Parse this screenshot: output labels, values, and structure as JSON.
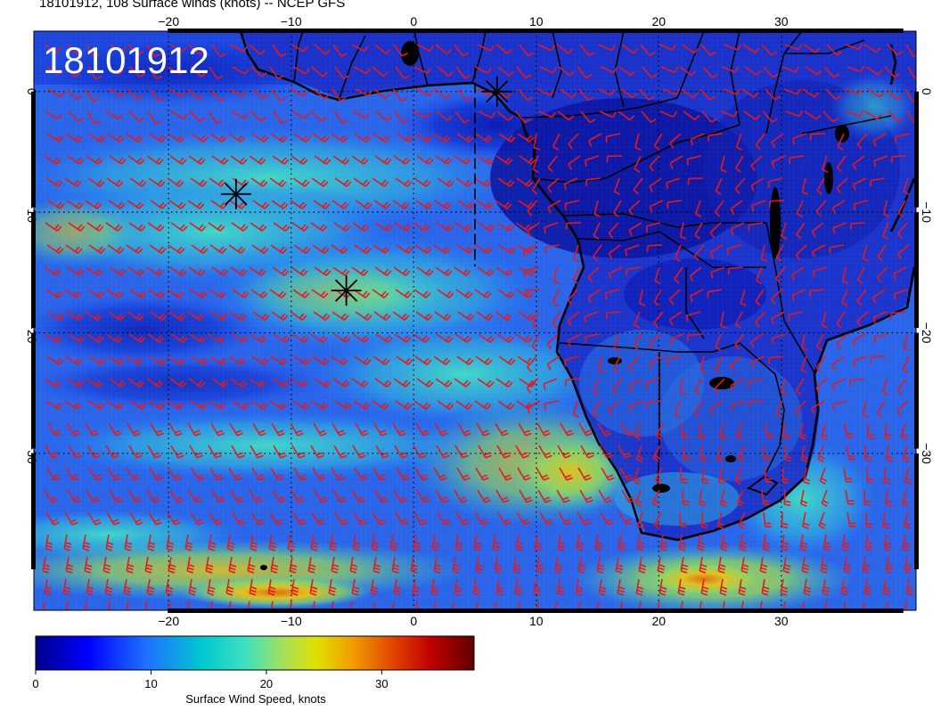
{
  "title": "18101912, 108 Surface winds (knots) -- NCEP GFS",
  "stamp": "18101912",
  "map": {
    "lon_range": [
      -31,
      41
    ],
    "lat_range": [
      5,
      -43
    ],
    "lon_ticks": [
      {
        "value": -20,
        "label": "−20"
      },
      {
        "value": -10,
        "label": "−10"
      },
      {
        "value": 0,
        "label": "0"
      },
      {
        "value": 10,
        "label": "10"
      },
      {
        "value": 20,
        "label": "20"
      },
      {
        "value": 30,
        "label": "30"
      }
    ],
    "lat_ticks": [
      {
        "value": 0,
        "label": "0"
      },
      {
        "value": -10,
        "label": "−10"
      },
      {
        "value": -20,
        "label": "−20"
      },
      {
        "value": -30,
        "label": "−30"
      }
    ],
    "grid": true,
    "barb_color": "#e41a1c",
    "storm_markers": [
      {
        "lon": -14.5,
        "lat": -8.5
      },
      {
        "lon": -5.5,
        "lat": -16.5
      },
      {
        "lon": 6.8,
        "lat": 0.0
      }
    ],
    "track": [
      {
        "lon": 5.0,
        "lat": 2.0
      },
      {
        "lon": 5.0,
        "lat": -14.5
      }
    ]
  },
  "colorbar": {
    "label": "Surface Wind Speed, knots",
    "range": [
      0,
      38
    ],
    "ticks": [
      {
        "value": 0,
        "label": "0"
      },
      {
        "value": 10,
        "label": "10"
      },
      {
        "value": 20,
        "label": "20"
      },
      {
        "value": 30,
        "label": "30"
      }
    ],
    "colors": [
      "#00008b",
      "#0000ff",
      "#1e6fff",
      "#00c8d0",
      "#40e0c0",
      "#a0e060",
      "#e0e000",
      "#f0a000",
      "#e04000",
      "#c00000",
      "#600000"
    ]
  }
}
